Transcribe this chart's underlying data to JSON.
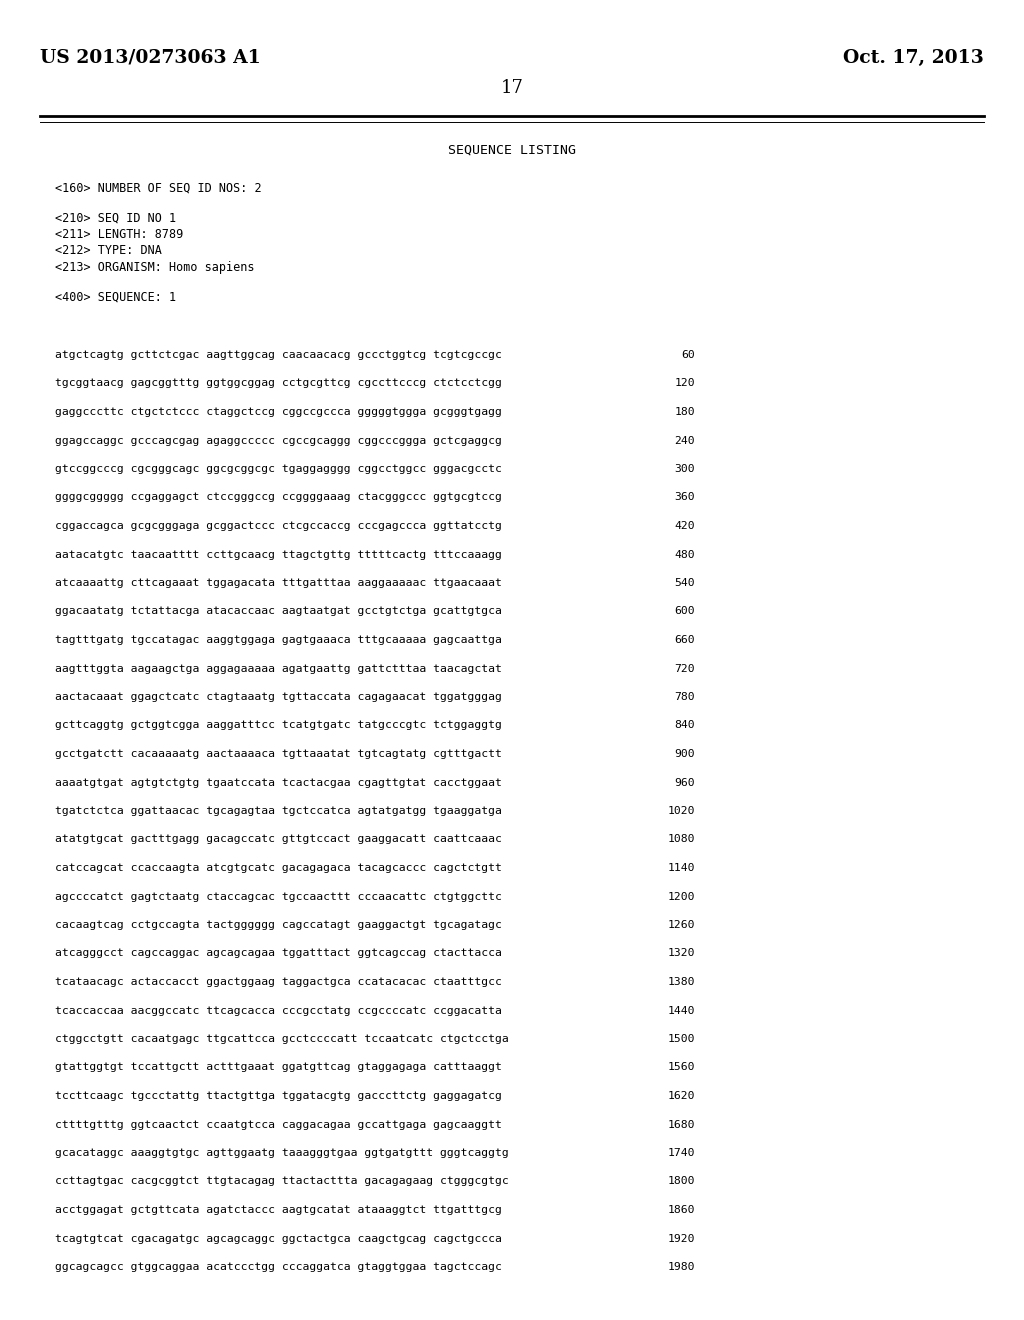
{
  "patent_number": "US 2013/0273063 A1",
  "date": "Oct. 17, 2013",
  "page_number": "17",
  "background_color": "#ffffff",
  "text_color": "#000000",
  "title": "SEQUENCE LISTING",
  "metadata": [
    "<160> NUMBER OF SEQ ID NOS: 2",
    "",
    "<210> SEQ ID NO 1",
    "<211> LENGTH: 8789",
    "<212> TYPE: DNA",
    "<213> ORGANISM: Homo sapiens",
    "",
    "<400> SEQUENCE: 1"
  ],
  "sequence_lines": [
    [
      "atgctcagtg gcttctcgac aagttggcag caacaacacg gccctggtcg tcgtcgccgc",
      "60"
    ],
    [
      "tgcggtaacg gagcggtttg ggtggcggag cctgcgttcg cgccttcccg ctctcctcgg",
      "120"
    ],
    [
      "gaggcccttc ctgctctccc ctaggctccg cggccgccca gggggtggga gcgggtgagg",
      "180"
    ],
    [
      "ggagccaggc gcccagcgag agaggccccc cgccgcaggg cggcccggga gctcgaggcg",
      "240"
    ],
    [
      "gtccggcccg cgcgggcagc ggcgcggcgc tgaggagggg cggcctggcc gggacgcctc",
      "300"
    ],
    [
      "ggggcggggg ccgaggagct ctccgggccg ccggggaaag ctacgggccc ggtgcgtccg",
      "360"
    ],
    [
      "cggaccagca gcgcgggaga gcggactccc ctcgccaccg cccgagccca ggttatcctg",
      "420"
    ],
    [
      "aatacatgtc taacaatttt ccttgcaacg ttagctgttg tttttcactg tttccaaagg",
      "480"
    ],
    [
      "atcaaaattg cttcagaaat tggagacata tttgatttaa aaggaaaaac ttgaacaaat",
      "540"
    ],
    [
      "ggacaatatg tctattacga atacaccaac aagtaatgat gcctgtctga gcattgtgca",
      "600"
    ],
    [
      "tagtttgatg tgccatagac aaggtggaga gagtgaaaca tttgcaaaaa gagcaattga",
      "660"
    ],
    [
      "aagtttggta aagaagctga aggagaaaaa agatgaattg gattctttaa taacagctat",
      "720"
    ],
    [
      "aactacaaat ggagctcatc ctagtaaatg tgttaccata cagagaacat tggatgggag",
      "780"
    ],
    [
      "gcttcaggtg gctggtcgga aaggatttcc tcatgtgatc tatgcccgtc tctggaggtg",
      "840"
    ],
    [
      "gcctgatctt cacaaaaatg aactaaaaca tgttaaatat tgtcagtatg cgtttgactt",
      "900"
    ],
    [
      "aaaatgtgat agtgtctgtg tgaatccata tcactacgaa cgagttgtat cacctggaat",
      "960"
    ],
    [
      "tgatctctca ggattaacac tgcagagtaa tgctccatca agtatgatgg tgaaggatga",
      "1020"
    ],
    [
      "atatgtgcat gactttgagg gacagccatc gttgtccact gaaggacatt caattcaaac",
      "1080"
    ],
    [
      "catccagcat ccaccaagta atcgtgcatc gacagagaca tacagcaccc cagctctgtt",
      "1140"
    ],
    [
      "agccccatct gagtctaatg ctaccagcac tgccaacttt cccaacattc ctgtggcttc",
      "1200"
    ],
    [
      "cacaagtcag cctgccagta tactgggggg cagccatagt gaaggactgt tgcagatagc",
      "1260"
    ],
    [
      "atcagggcct cagccaggac agcagcagaa tggatttact ggtcagccag ctacttacca",
      "1320"
    ],
    [
      "tcataacagc actaccacct ggactggaag taggactgca ccatacacac ctaatttgcc",
      "1380"
    ],
    [
      "tcaccaccaa aacggccatc ttcagcacca cccgcctatg ccgccccatc ccggacatta",
      "1440"
    ],
    [
      "ctggcctgtt cacaatgagc ttgcattcca gcctccccatt tccaatcatc ctgctcctga",
      "1500"
    ],
    [
      "gtattggtgt tccattgctt actttgaaat ggatgttcag gtaggagaga catttaaggt",
      "1560"
    ],
    [
      "tccttcaagc tgccctattg ttactgttga tggatacgtg gacccttctg gaggagatcg",
      "1620"
    ],
    [
      "cttttgtttg ggtcaactct ccaatgtcca caggacagaa gccattgaga gagcaaggtt",
      "1680"
    ],
    [
      "gcacataggc aaaggtgtgc agttggaatg taaagggtgaa ggtgatgttt gggtcaggtg",
      "1740"
    ],
    [
      "ccttagtgac cacgcggtct ttgtacagag ttactacttta gacagagaag ctgggcgtgc",
      "1800"
    ],
    [
      "acctggagat gctgttcata agatctaccc aagtgcatat ataaaggtct ttgatttgcg",
      "1860"
    ],
    [
      "tcagtgtcat cgacagatgc agcagcaggc ggctactgca caagctgcag cagctgccca",
      "1920"
    ],
    [
      "ggcagcagcc gtggcaggaa acatccctgg cccaggatca gtaggtggaa tagctccagc",
      "1980"
    ]
  ]
}
